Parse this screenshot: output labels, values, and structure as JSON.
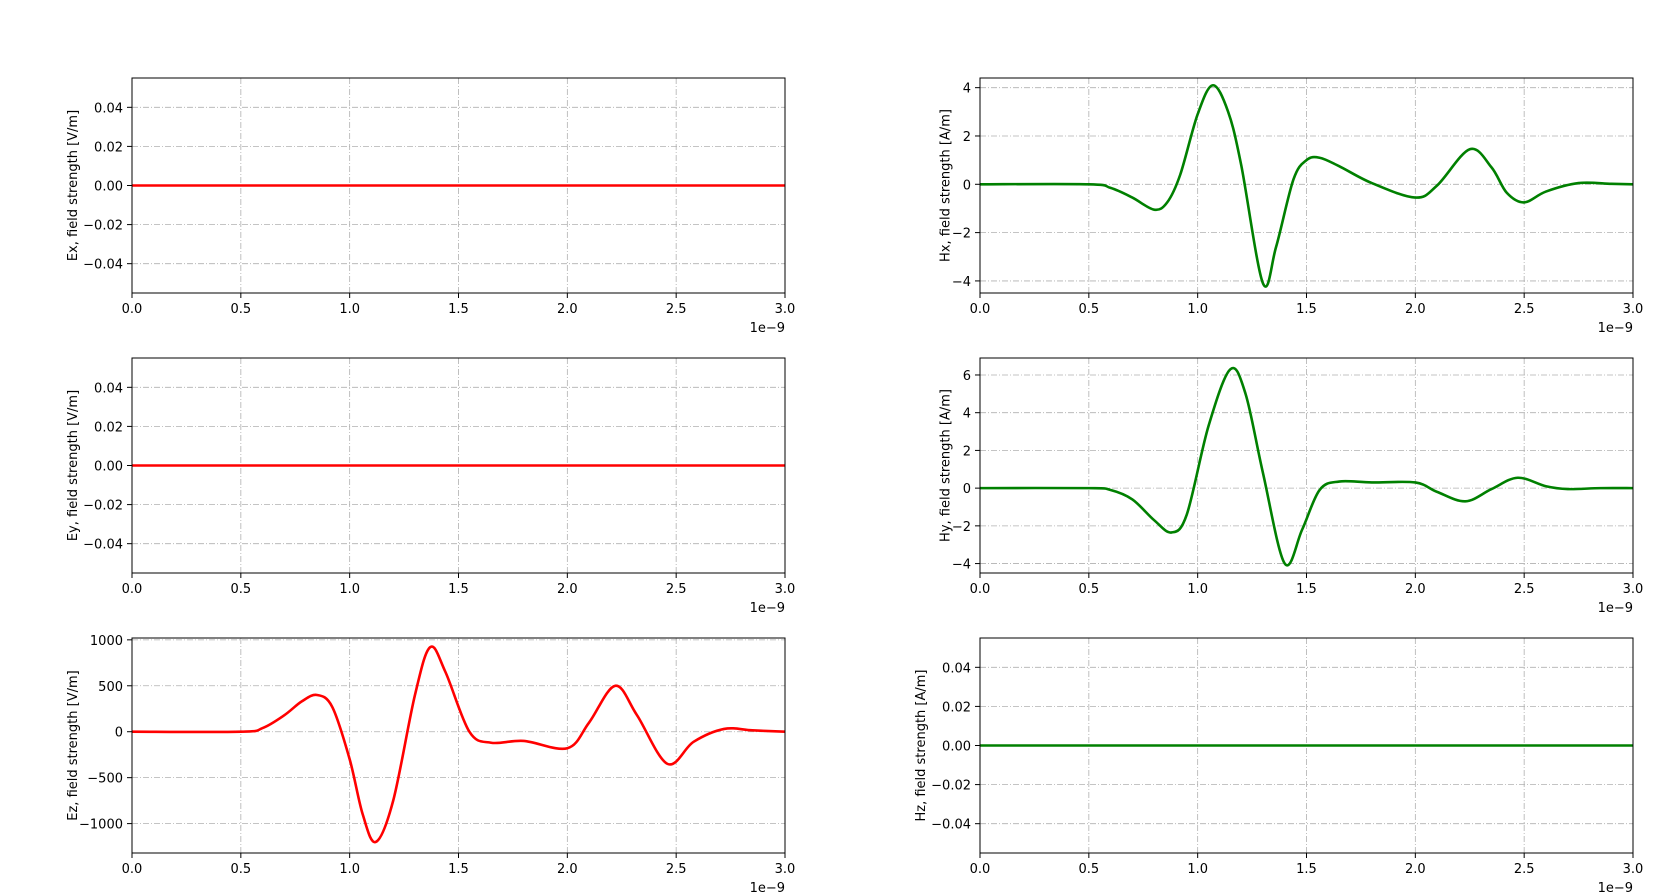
{
  "chart_data": [
    {
      "type": "line",
      "ylabel": "Ex, field strength [V/m]",
      "xlim": [
        0,
        3e-09
      ],
      "ylim": [
        -0.055,
        0.055
      ],
      "xticks": [
        0,
        5e-10,
        1e-09,
        1.5e-09,
        2e-09,
        2.5e-09,
        3e-09
      ],
      "xtick_labels": [
        "0.0",
        "0.5",
        "1.0",
        "1.5",
        "2.0",
        "2.5",
        "3.0"
      ],
      "yticks": [
        -0.04,
        -0.02,
        0.0,
        0.02,
        0.04
      ],
      "ytick_labels": [
        "−0.04",
        "−0.02",
        "0.00",
        "0.02",
        "0.04"
      ],
      "x_offset_label": "1e−9",
      "grid": true,
      "color": "#ff0000",
      "series": [
        {
          "x": [
            0,
            3e-09
          ],
          "y": [
            0,
            0
          ]
        }
      ]
    },
    {
      "type": "line",
      "ylabel": "Hx, field strength [A/m]",
      "xlim": [
        0,
        3e-09
      ],
      "ylim": [
        -4.5,
        4.4
      ],
      "xticks": [
        0,
        5e-10,
        1e-09,
        1.5e-09,
        2e-09,
        2.5e-09,
        3e-09
      ],
      "xtick_labels": [
        "0.0",
        "0.5",
        "1.0",
        "1.5",
        "2.0",
        "2.5",
        "3.0"
      ],
      "yticks": [
        -4,
        -2,
        0,
        2,
        4
      ],
      "ytick_labels": [
        "−4",
        "−2",
        "0",
        "2",
        "4"
      ],
      "x_offset_label": "1e−9",
      "grid": true,
      "color": "#008000",
      "series": [
        {
          "x": [
            0,
            5e-10,
            6e-10,
            7e-10,
            8e-10,
            8.6e-10,
            9.2e-10,
            1e-09,
            1.07e-09,
            1.14e-09,
            1.2e-09,
            1.3e-09,
            1.36e-09,
            1.44e-09,
            1.5e-09,
            1.56e-09,
            1.65e-09,
            1.8e-09,
            2e-09,
            2.1e-09,
            2.25e-09,
            2.35e-09,
            2.42e-09,
            2.5e-09,
            2.6e-09,
            2.75e-09,
            2.9e-09,
            3e-09
          ],
          "y": [
            0,
            0,
            -0.15,
            -0.55,
            -1.05,
            -0.75,
            0.4,
            2.9,
            4.1,
            3.0,
            0.8,
            -4.1,
            -2.6,
            0.2,
            1.0,
            1.1,
            0.75,
            0.05,
            -0.55,
            -0.05,
            1.45,
            0.7,
            -0.35,
            -0.75,
            -0.3,
            0.05,
            0.02,
            0
          ]
        }
      ]
    },
    {
      "type": "line",
      "ylabel": "Ey, field strength [V/m]",
      "xlim": [
        0,
        3e-09
      ],
      "ylim": [
        -0.055,
        0.055
      ],
      "xticks": [
        0,
        5e-10,
        1e-09,
        1.5e-09,
        2e-09,
        2.5e-09,
        3e-09
      ],
      "xtick_labels": [
        "0.0",
        "0.5",
        "1.0",
        "1.5",
        "2.0",
        "2.5",
        "3.0"
      ],
      "yticks": [
        -0.04,
        -0.02,
        0.0,
        0.02,
        0.04
      ],
      "ytick_labels": [
        "−0.04",
        "−0.02",
        "0.00",
        "0.02",
        "0.04"
      ],
      "x_offset_label": "1e−9",
      "grid": true,
      "color": "#ff0000",
      "series": [
        {
          "x": [
            0,
            3e-09
          ],
          "y": [
            0,
            0
          ]
        }
      ]
    },
    {
      "type": "line",
      "ylabel": "Hy, field strength [A/m]",
      "xlim": [
        0,
        3e-09
      ],
      "ylim": [
        -4.5,
        6.9
      ],
      "xticks": [
        0,
        5e-10,
        1e-09,
        1.5e-09,
        2e-09,
        2.5e-09,
        3e-09
      ],
      "xtick_labels": [
        "0.0",
        "0.5",
        "1.0",
        "1.5",
        "2.0",
        "2.5",
        "3.0"
      ],
      "yticks": [
        -4,
        -2,
        0,
        2,
        4,
        6
      ],
      "ytick_labels": [
        "−4",
        "−2",
        "0",
        "2",
        "4",
        "6"
      ],
      "x_offset_label": "1e−9",
      "grid": true,
      "color": "#008000",
      "series": [
        {
          "x": [
            0,
            5e-10,
            6e-10,
            7e-10,
            8e-10,
            8.8e-10,
            9.5e-10,
            1.05e-09,
            1.15e-09,
            1.22e-09,
            1.3e-09,
            1.4e-09,
            1.48e-09,
            1.56e-09,
            1.65e-09,
            1.8e-09,
            2e-09,
            2.1e-09,
            2.23e-09,
            2.35e-09,
            2.47e-09,
            2.6e-09,
            2.7e-09,
            2.85e-09,
            3e-09
          ],
          "y": [
            0,
            0,
            -0.1,
            -0.6,
            -1.7,
            -2.35,
            -1.4,
            3.3,
            6.3,
            5.0,
            0.8,
            -4.0,
            -2.2,
            -0.1,
            0.35,
            0.3,
            0.3,
            -0.2,
            -0.7,
            -0.05,
            0.55,
            0.1,
            -0.05,
            0,
            0
          ]
        }
      ]
    },
    {
      "type": "line",
      "ylabel": "Ez, field strength [V/m]",
      "xlim": [
        0,
        3e-09
      ],
      "ylim": [
        -1320,
        1020
      ],
      "xticks": [
        0,
        5e-10,
        1e-09,
        1.5e-09,
        2e-09,
        2.5e-09,
        3e-09
      ],
      "xtick_labels": [
        "0.0",
        "0.5",
        "1.0",
        "1.5",
        "2.0",
        "2.5",
        "3.0"
      ],
      "yticks": [
        -1000,
        -500,
        0,
        500,
        1000
      ],
      "ytick_labels": [
        "−1000",
        "−500",
        "0",
        "500",
        "1000"
      ],
      "x_offset_label": "1e−9",
      "grid": true,
      "color": "#ff0000",
      "series": [
        {
          "x": [
            0,
            5e-10,
            6e-10,
            7e-10,
            7.8e-10,
            8.5e-10,
            9.2e-10,
            1e-09,
            1.06e-09,
            1.12e-09,
            1.2e-09,
            1.3e-09,
            1.37e-09,
            1.44e-09,
            1.55e-09,
            1.65e-09,
            1.8e-09,
            2e-09,
            2.1e-09,
            2.22e-09,
            2.32e-09,
            2.46e-09,
            2.58e-09,
            2.72e-09,
            2.85e-09,
            3e-09
          ],
          "y": [
            0,
            0,
            40,
            180,
            330,
            400,
            270,
            -300,
            -900,
            -1200,
            -750,
            400,
            920,
            650,
            0,
            -120,
            -100,
            -180,
            100,
            500,
            180,
            -350,
            -110,
            30,
            15,
            0
          ]
        }
      ]
    },
    {
      "type": "line",
      "ylabel": "Hz, field strength [A/m]",
      "xlim": [
        0,
        3e-09
      ],
      "ylim": [
        -0.055,
        0.055
      ],
      "xticks": [
        0,
        5e-10,
        1e-09,
        1.5e-09,
        2e-09,
        2.5e-09,
        3e-09
      ],
      "xtick_labels": [
        "0.0",
        "0.5",
        "1.0",
        "1.5",
        "2.0",
        "2.5",
        "3.0"
      ],
      "yticks": [
        -0.04,
        -0.02,
        0.0,
        0.02,
        0.04
      ],
      "ytick_labels": [
        "−0.04",
        "−0.02",
        "0.00",
        "0.02",
        "0.04"
      ],
      "x_offset_label": "1e−9",
      "grid": true,
      "color": "#008000",
      "series": [
        {
          "x": [
            0,
            3e-09
          ],
          "y": [
            0,
            0
          ]
        }
      ]
    }
  ]
}
